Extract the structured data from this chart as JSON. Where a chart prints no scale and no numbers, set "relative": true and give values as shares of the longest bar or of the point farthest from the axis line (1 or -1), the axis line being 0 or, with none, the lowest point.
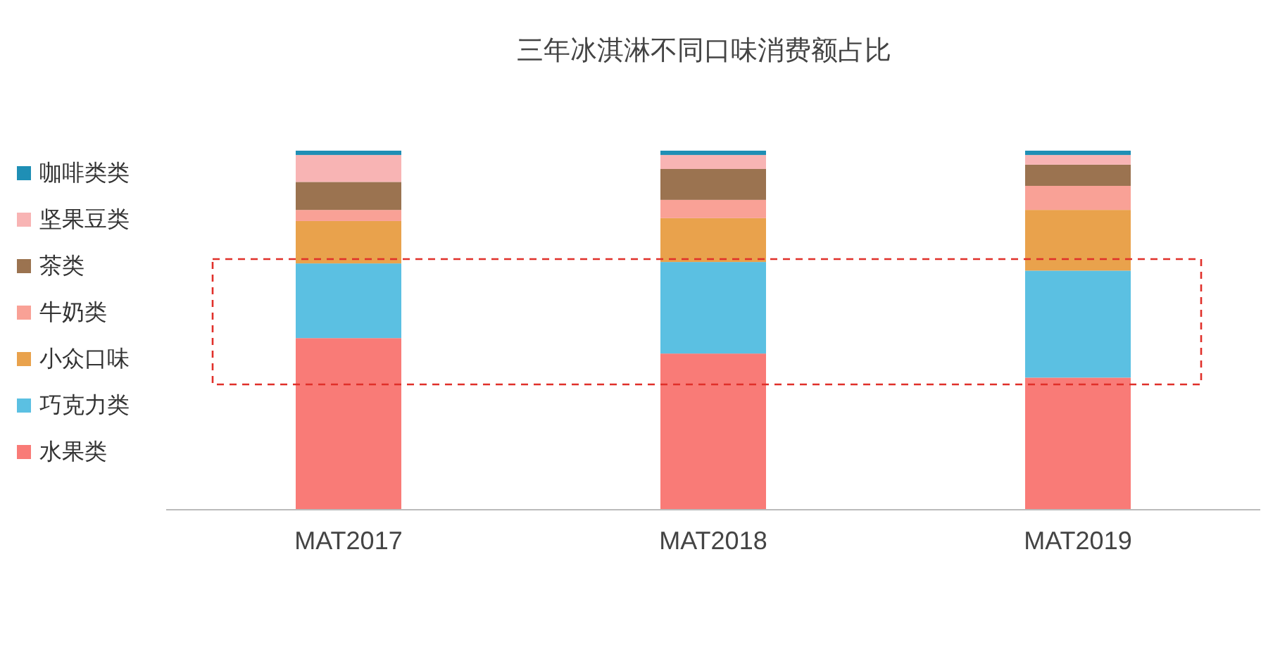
{
  "chart_data": {
    "type": "bar",
    "title": "三年冰淇淋不同口味消费额占比",
    "stacked": true,
    "relative": true,
    "legend": "left",
    "categories": [
      "MAT2017",
      "MAT2018",
      "MAT2019"
    ],
    "series": [
      {
        "name": "水果类",
        "color": "#f97b77",
        "values": [
          0.478,
          0.435,
          0.368
        ]
      },
      {
        "name": "巧克力类",
        "color": "#5bc0e2",
        "values": [
          0.208,
          0.255,
          0.298
        ]
      },
      {
        "name": "小众口味",
        "color": "#e9a24c",
        "values": [
          0.118,
          0.122,
          0.169
        ]
      },
      {
        "name": "牛奶类",
        "color": "#f9a196",
        "values": [
          0.031,
          0.051,
          0.067
        ]
      },
      {
        "name": "茶类",
        "color": "#9b7350",
        "values": [
          0.078,
          0.086,
          0.059
        ]
      },
      {
        "name": "坚果豆类",
        "color": "#f8b4b4",
        "values": [
          0.075,
          0.039,
          0.027
        ]
      },
      {
        "name": "咖啡类类",
        "color": "#1f8fb5",
        "values": [
          0.012,
          0.012,
          0.012
        ]
      }
    ]
  }
}
